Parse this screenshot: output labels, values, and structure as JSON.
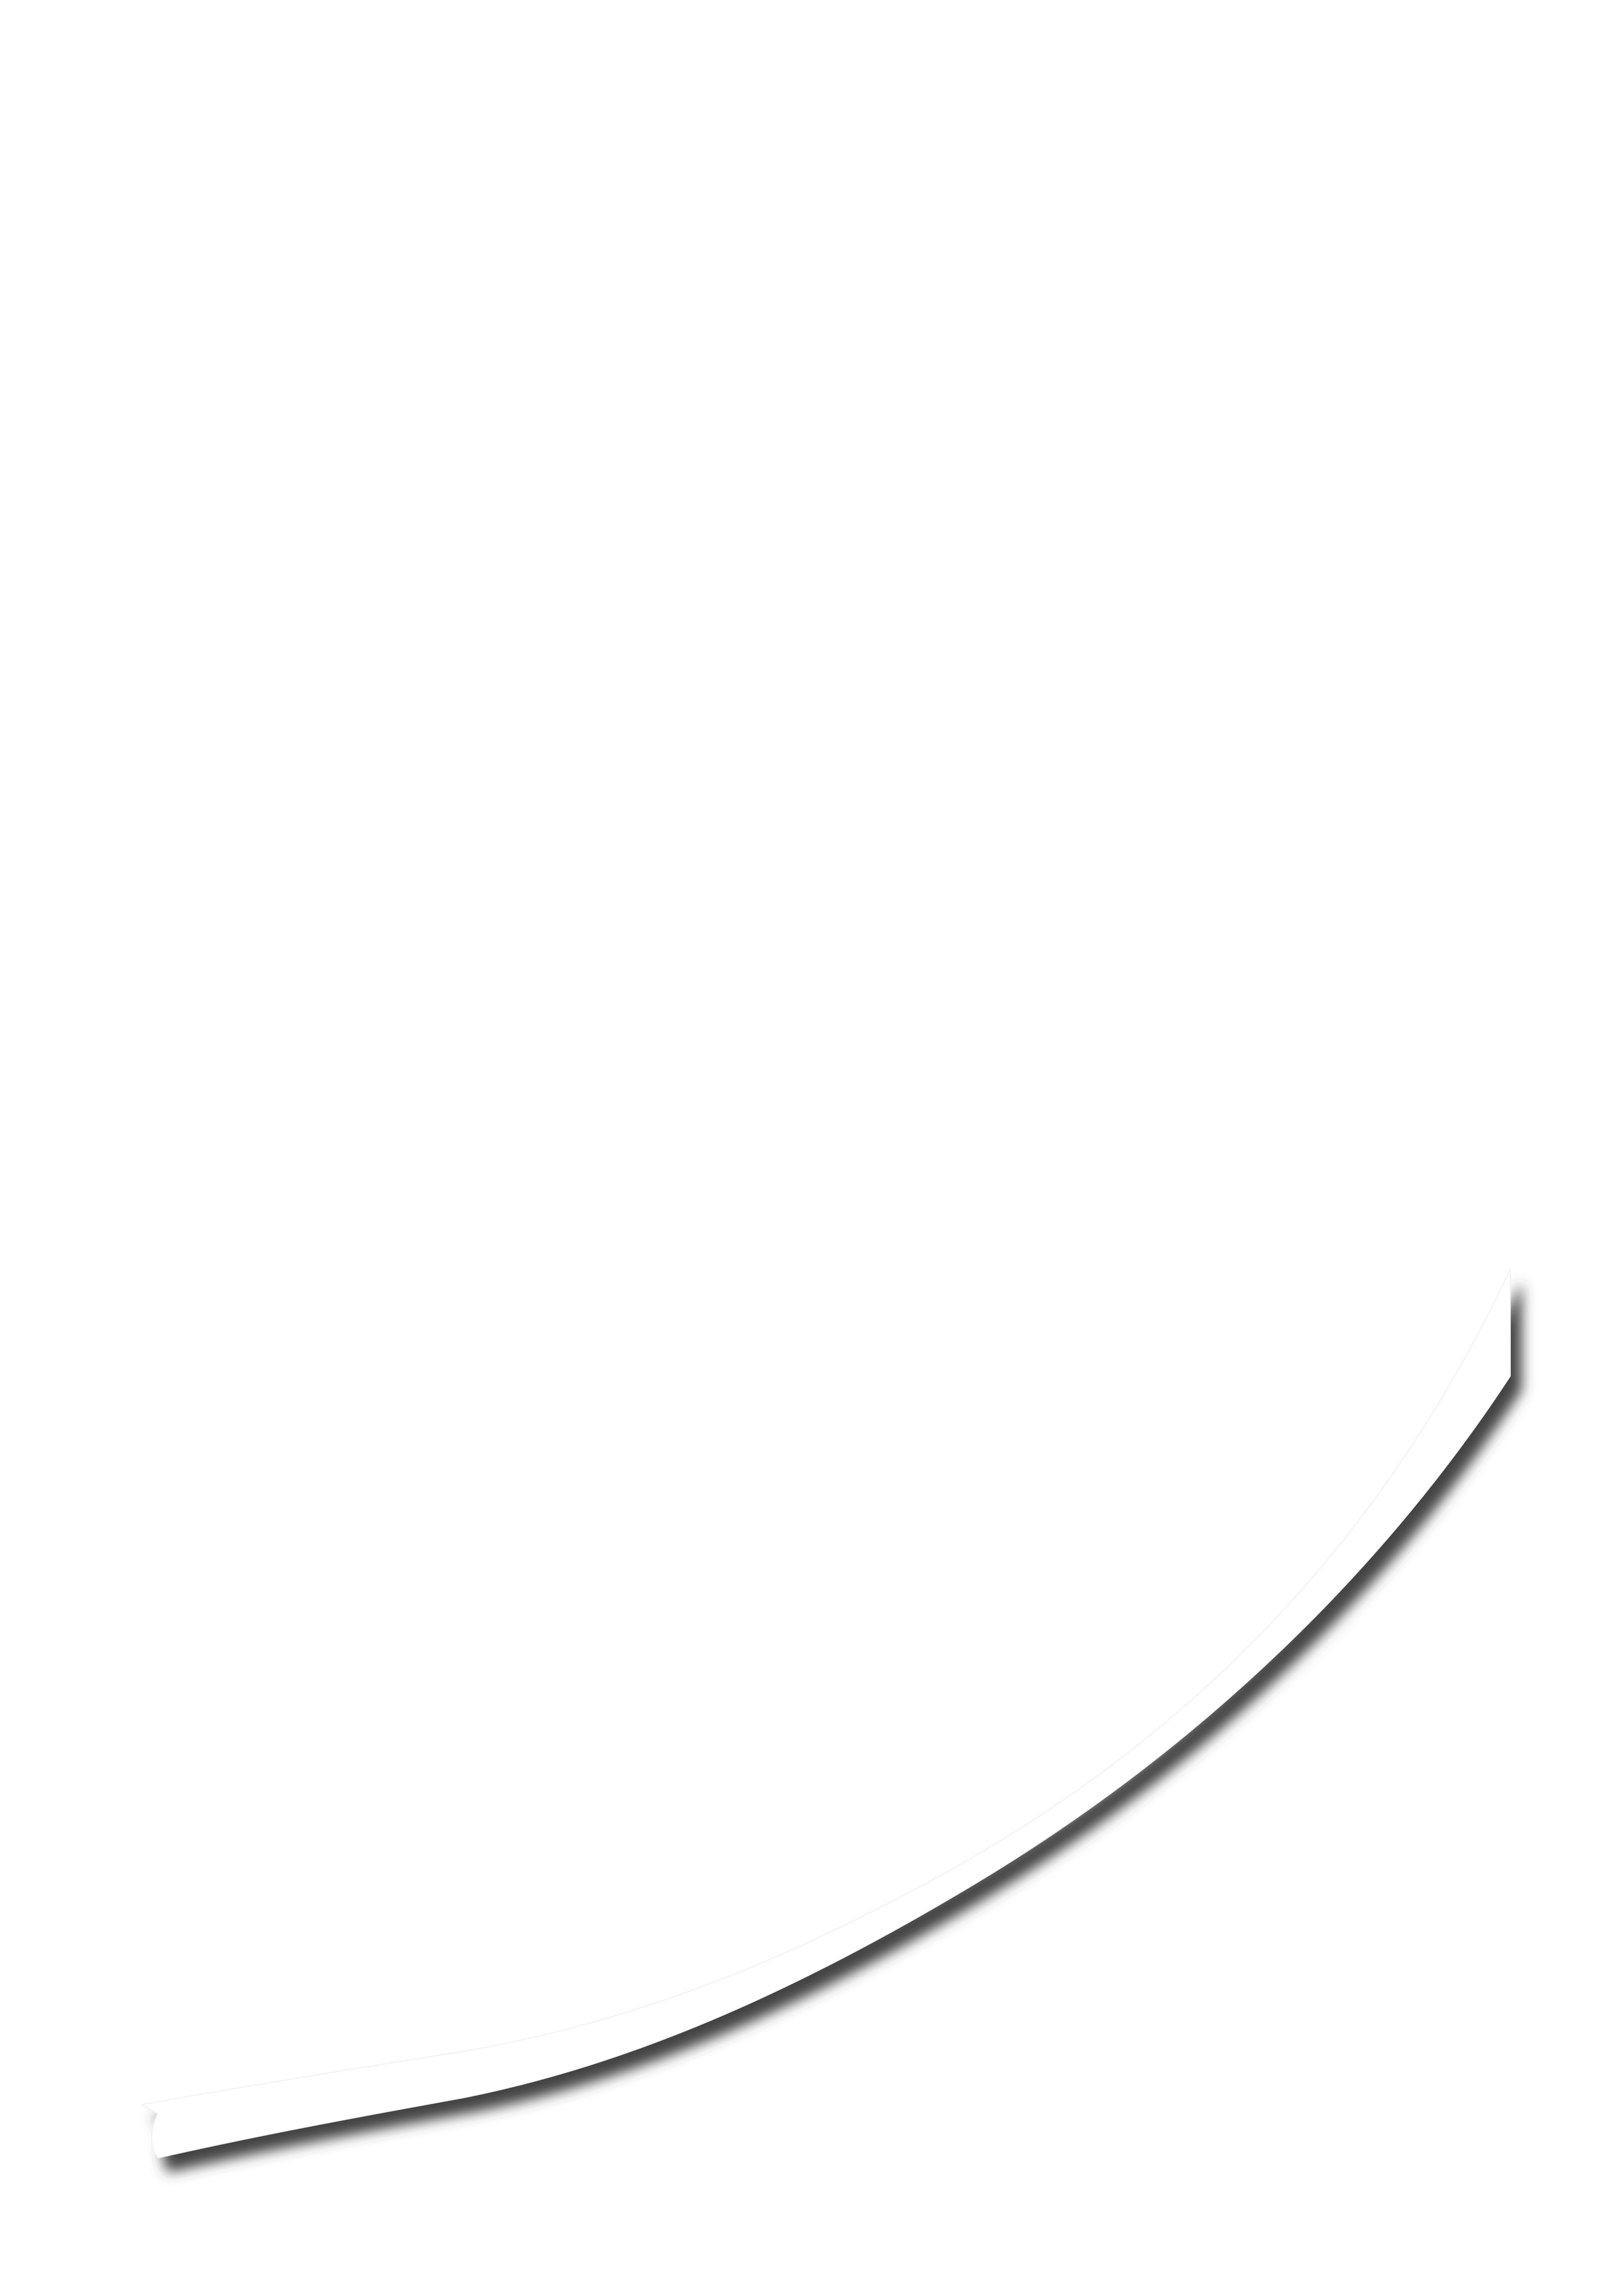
{
  "page": {
    "background_color": "#ffffff"
  },
  "curved_strip": {
    "fill_color": "#ffffff",
    "edge_color": "#f0f0f0",
    "shadow_color": "#3a3a3a"
  }
}
